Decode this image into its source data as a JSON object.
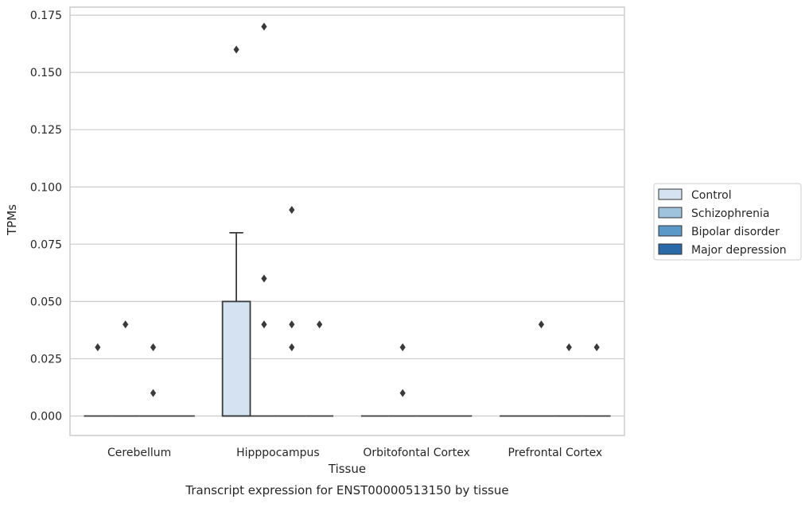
{
  "chart_data": {
    "type": "box",
    "title": "Transcript expression for ENST00000513150 by tissue",
    "xlabel": "Tissue",
    "ylabel": "TPMs",
    "ylim": [
      -0.0085,
      0.1785
    ],
    "yticks": [
      "0.000",
      "0.025",
      "0.050",
      "0.075",
      "0.100",
      "0.125",
      "0.150",
      "0.175"
    ],
    "categories": [
      "Cerebellum",
      "Hipppocampus",
      "Orbitofontal Cortex",
      "Prefrontal Cortex"
    ],
    "grid": true,
    "legend_position": "right",
    "series": [
      {
        "name": "Control",
        "color": "#d4e2f1",
        "boxes": [
          {
            "q1": 0,
            "median": 0,
            "q3": 0,
            "whisker_low": 0,
            "whisker_high": 0,
            "outliers": [
              0.03
            ]
          },
          {
            "q1": 0,
            "median": 0,
            "q3": 0.05,
            "whisker_low": 0,
            "whisker_high": 0.08,
            "outliers": [
              0.16
            ]
          },
          {
            "q1": 0,
            "median": 0,
            "q3": 0,
            "whisker_low": 0,
            "whisker_high": 0,
            "outliers": []
          },
          {
            "q1": 0,
            "median": 0,
            "q3": 0,
            "whisker_low": 0,
            "whisker_high": 0,
            "outliers": []
          }
        ]
      },
      {
        "name": "Schizophrenia",
        "color": "#9fc3dd",
        "boxes": [
          {
            "q1": 0,
            "median": 0,
            "q3": 0,
            "whisker_low": 0,
            "whisker_high": 0,
            "outliers": [
              0.04
            ]
          },
          {
            "q1": 0,
            "median": 0,
            "q3": 0,
            "whisker_low": 0,
            "whisker_high": 0,
            "outliers": [
              0.17,
              0.06,
              0.04
            ]
          },
          {
            "q1": 0,
            "median": 0,
            "q3": 0,
            "whisker_low": 0,
            "whisker_high": 0,
            "outliers": [
              0.03,
              0.01
            ]
          },
          {
            "q1": 0,
            "median": 0,
            "q3": 0,
            "whisker_low": 0,
            "whisker_high": 0,
            "outliers": [
              0.04
            ]
          }
        ]
      },
      {
        "name": "Bipolar disorder",
        "color": "#5b9ac8",
        "boxes": [
          {
            "q1": 0,
            "median": 0,
            "q3": 0,
            "whisker_low": 0,
            "whisker_high": 0,
            "outliers": [
              0.03,
              0.01
            ]
          },
          {
            "q1": 0,
            "median": 0,
            "q3": 0,
            "whisker_low": 0,
            "whisker_high": 0,
            "outliers": [
              0.09,
              0.04,
              0.03
            ]
          },
          {
            "q1": 0,
            "median": 0,
            "q3": 0,
            "whisker_low": 0,
            "whisker_high": 0,
            "outliers": []
          },
          {
            "q1": 0,
            "median": 0,
            "q3": 0,
            "whisker_low": 0,
            "whisker_high": 0,
            "outliers": [
              0.03
            ]
          }
        ]
      },
      {
        "name": "Major depression",
        "color": "#2b6aa9",
        "boxes": [
          {
            "q1": 0,
            "median": 0,
            "q3": 0,
            "whisker_low": 0,
            "whisker_high": 0,
            "outliers": []
          },
          {
            "q1": 0,
            "median": 0,
            "q3": 0,
            "whisker_low": 0,
            "whisker_high": 0,
            "outliers": [
              0.04
            ]
          },
          {
            "q1": 0,
            "median": 0,
            "q3": 0,
            "whisker_low": 0,
            "whisker_high": 0,
            "outliers": []
          },
          {
            "q1": 0,
            "median": 0,
            "q3": 0,
            "whisker_low": 0,
            "whisker_high": 0,
            "outliers": [
              0.03
            ]
          }
        ]
      }
    ]
  }
}
